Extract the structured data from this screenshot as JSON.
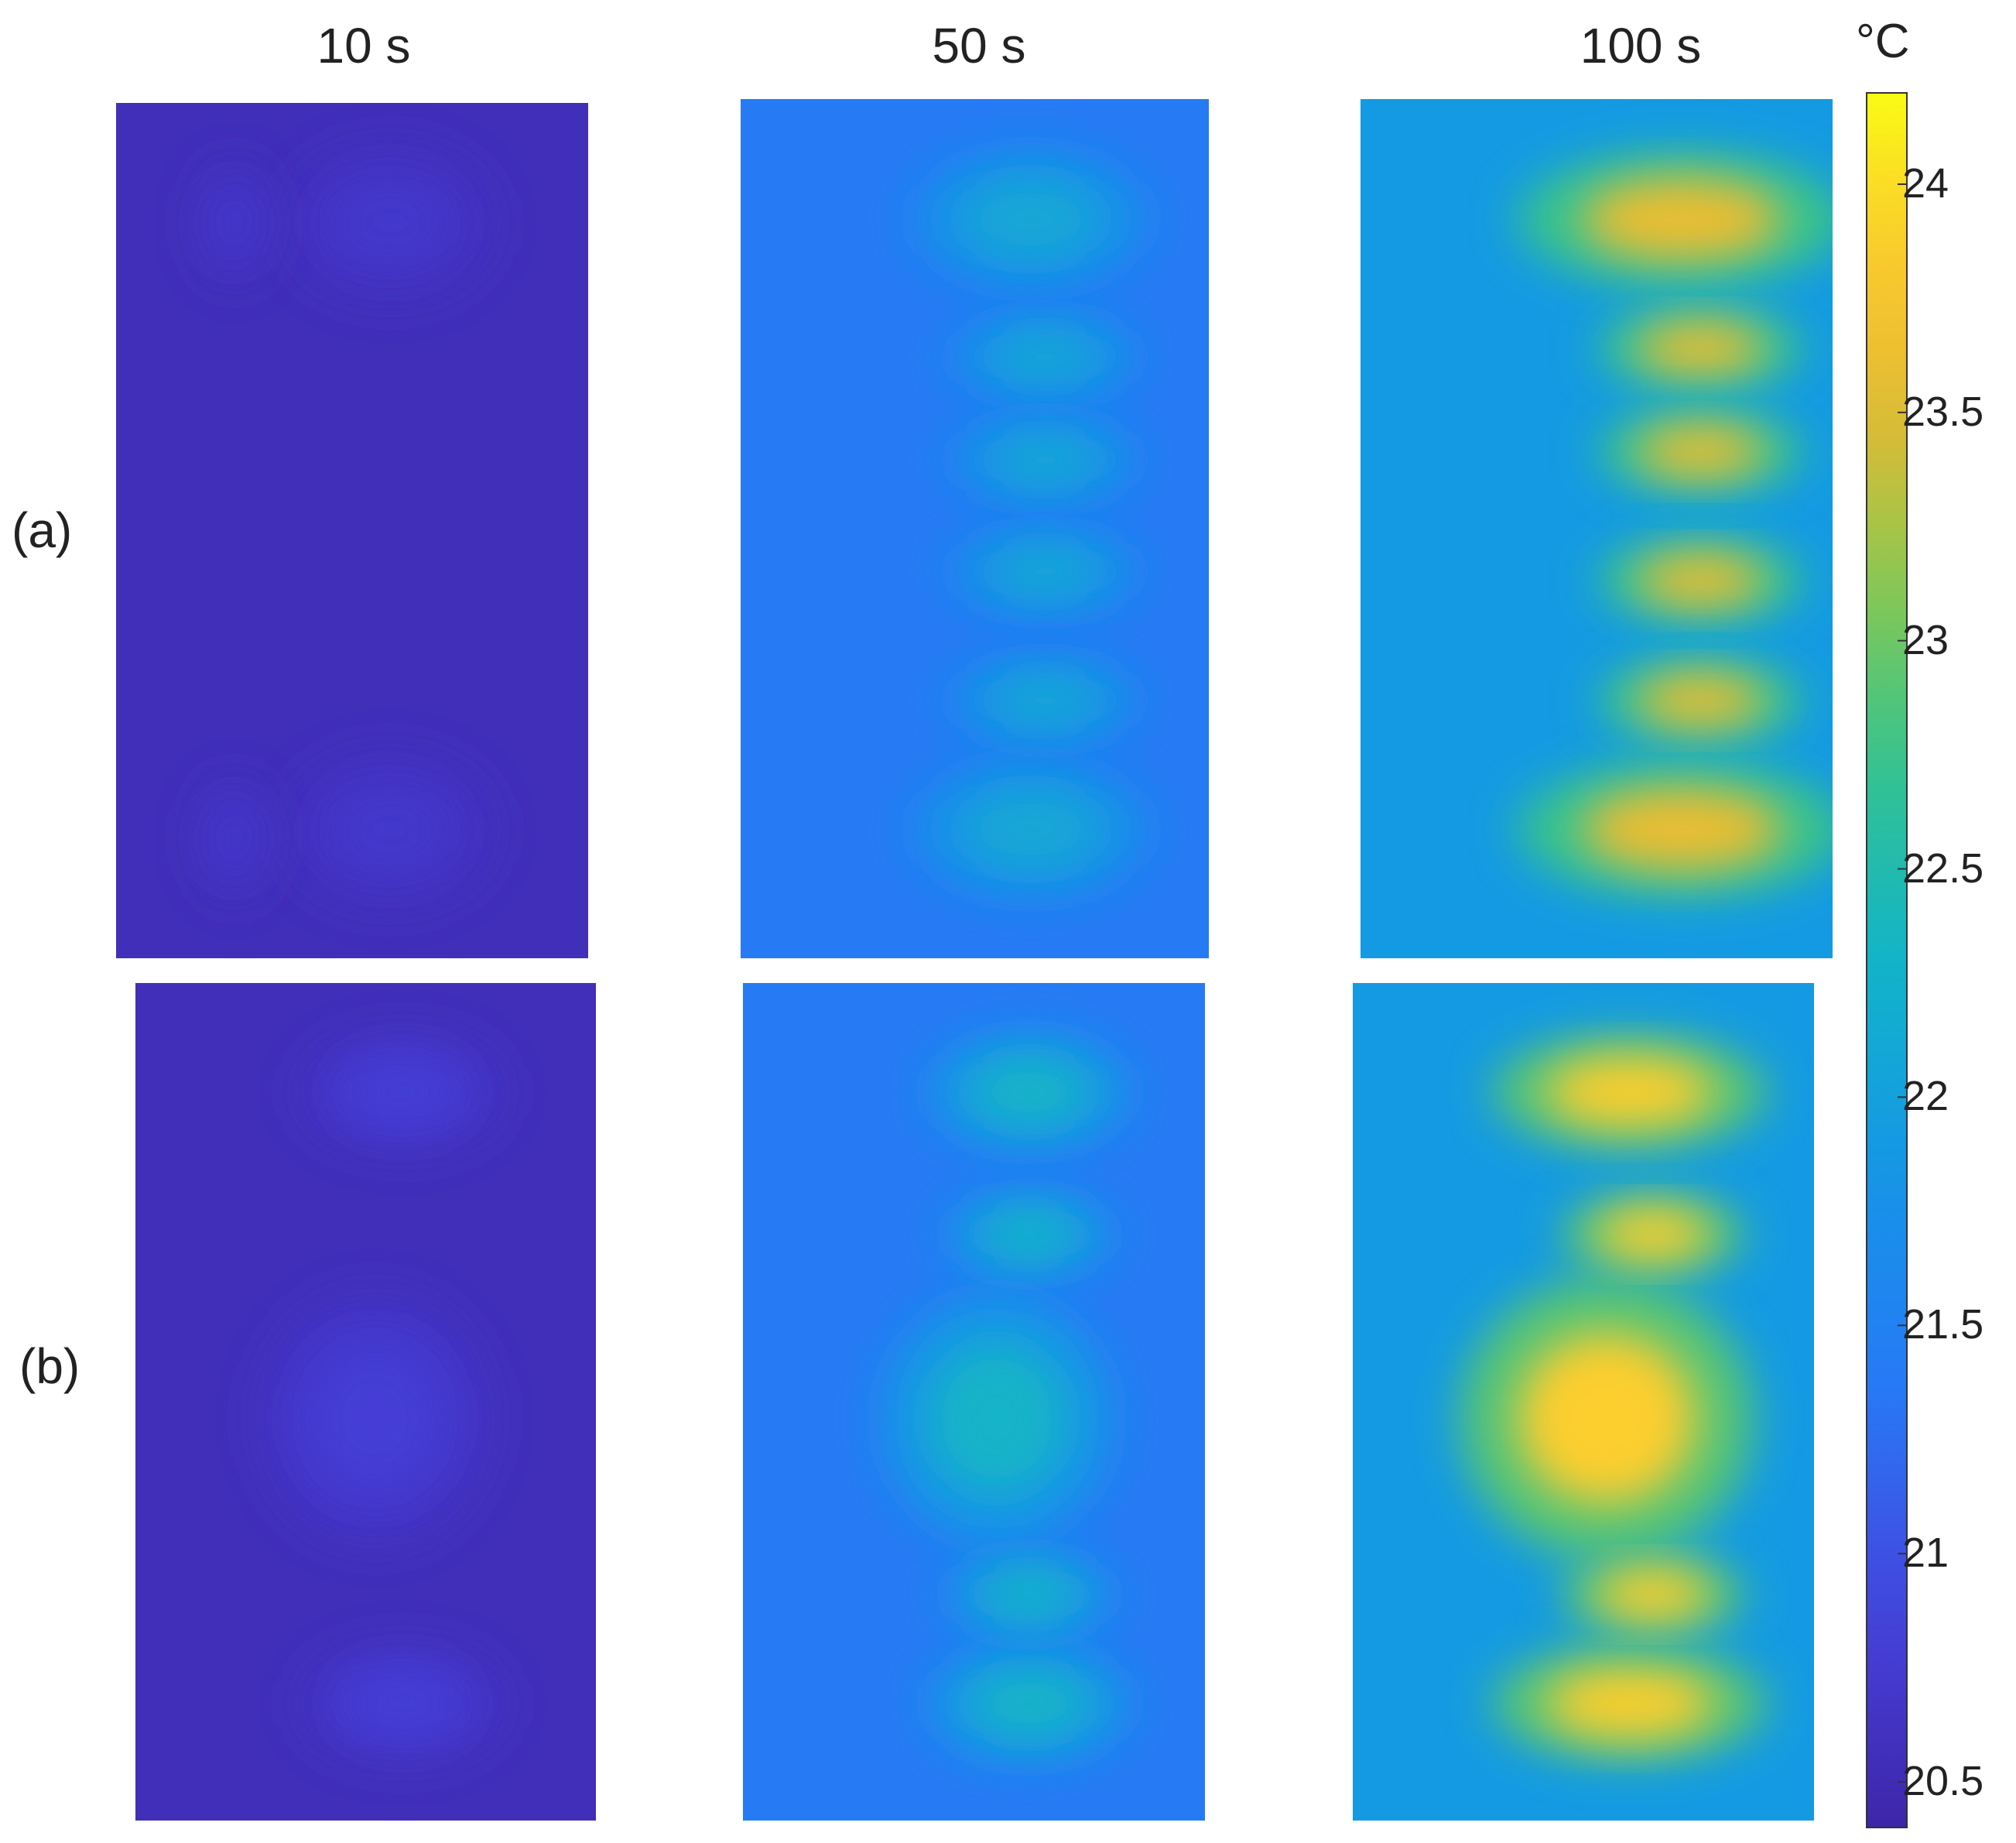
{
  "chart_data": {
    "type": "heatmap",
    "columns": [
      "10 s",
      "50 s",
      "100 s"
    ],
    "rows": [
      "(a)",
      "(b)"
    ],
    "colorbar": {
      "unit": "°C",
      "range": [
        20.4,
        24.2
      ],
      "ticks": [
        20.5,
        21,
        21.5,
        22,
        22.5,
        23,
        23.5,
        24
      ],
      "tick_labels": [
        "20.5",
        "21",
        "21.5",
        "22",
        "22.5",
        "23",
        "23.5",
        "24"
      ],
      "colormap": "parula"
    },
    "panels": [
      {
        "row": "(a)",
        "col": "10 s",
        "base_temp": 20.55,
        "hot_temp": 20.7
      },
      {
        "row": "(a)",
        "col": "50 s",
        "base_temp": 21.4,
        "hot_temp": 22.1
      },
      {
        "row": "(a)",
        "col": "100 s",
        "base_temp": 21.9,
        "hot_temp": 23.6
      },
      {
        "row": "(b)",
        "col": "10 s",
        "base_temp": 20.55,
        "hot_temp": 20.8
      },
      {
        "row": "(b)",
        "col": "50 s",
        "base_temp": 21.4,
        "hot_temp": 22.3
      },
      {
        "row": "(b)",
        "col": "100 s",
        "base_temp": 21.9,
        "hot_temp": 23.9
      }
    ]
  }
}
